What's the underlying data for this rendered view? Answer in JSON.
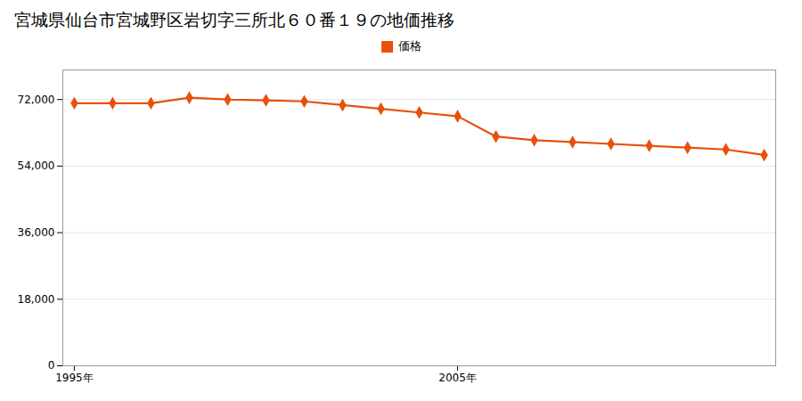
{
  "chart_data": {
    "type": "line",
    "title": "宮城県仙台市宮城野区岩切字三所北６０番１９の地価推移",
    "x": [
      1995,
      1996,
      1997,
      1998,
      1999,
      2000,
      2001,
      2002,
      2003,
      2004,
      2005,
      2006,
      2007,
      2008,
      2009,
      2010,
      2011,
      2012,
      2013
    ],
    "series": [
      {
        "name": "価格",
        "color": "#E8500A",
        "marker": "diamond",
        "values": [
          71000,
          71000,
          71000,
          72500,
          72000,
          71800,
          71500,
          70500,
          69500,
          68500,
          67500,
          62000,
          61000,
          60500,
          60000,
          59500,
          59000,
          58500,
          57000
        ]
      }
    ],
    "xlim": [
      1994.7,
      2013.3
    ],
    "xticks": [
      {
        "value": 1995,
        "label": "1995年"
      },
      {
        "value": 2005,
        "label": "2005年"
      }
    ],
    "ylim": [
      0,
      80000
    ],
    "yticks": [
      0,
      {
        "value": 18000,
        "label": "18,000"
      },
      {
        "value": 36000,
        "label": "36,000"
      },
      {
        "value": 54000,
        "label": "54,000"
      },
      {
        "value": 72000,
        "label": "72,000"
      }
    ],
    "grid": true,
    "legend": "top"
  }
}
